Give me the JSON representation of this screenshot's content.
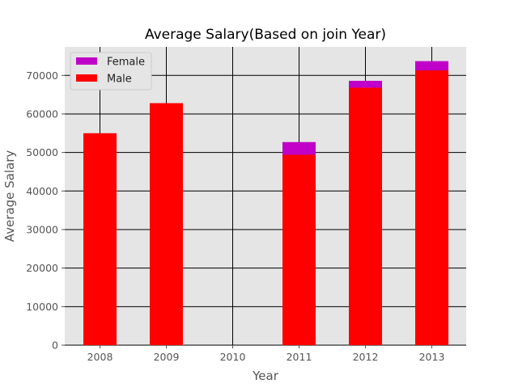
{
  "chart_data": {
    "type": "bar",
    "stacked": false,
    "title": "Average Salary(Based on join Year)",
    "xlabel": "Year",
    "ylabel": "Average Salary",
    "categories": [
      "2008",
      "2009",
      "2010",
      "2011",
      "2012",
      "2013"
    ],
    "series": [
      {
        "name": "Female",
        "color": "#c000c8",
        "values": [
          null,
          null,
          null,
          52700,
          68600,
          73700
        ]
      },
      {
        "name": "Male",
        "color": "#ff0000",
        "values": [
          55000,
          62800,
          null,
          49400,
          66800,
          71300
        ]
      }
    ],
    "ylim": [
      0,
      77400
    ],
    "yticks": [
      0,
      10000,
      20000,
      30000,
      40000,
      50000,
      60000,
      70000
    ],
    "grid": true,
    "legend": "top-left"
  }
}
